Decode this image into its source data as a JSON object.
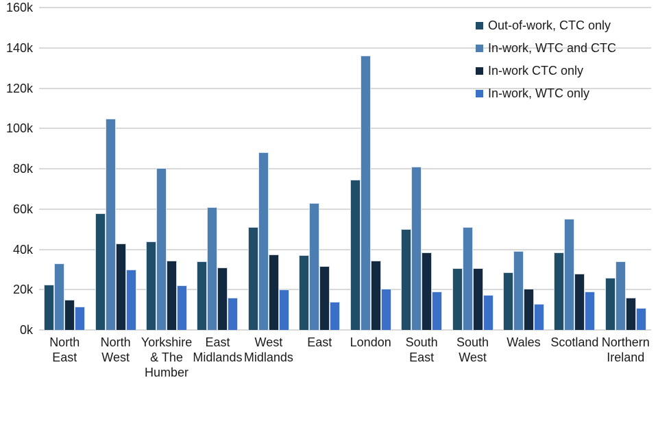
{
  "chart_data": {
    "type": "bar",
    "title": "",
    "xlabel": "",
    "ylabel": "",
    "categories": [
      "North East",
      "North West",
      "Yorkshire & The Humber",
      "East Midlands",
      "West Midlands",
      "East",
      "London",
      "South East",
      "South West",
      "Wales",
      "Scotland",
      "Northern Ireland"
    ],
    "series": [
      {
        "name": "Out-of-work, CTC only",
        "color": "#204d68",
        "values": [
          22500,
          58000,
          44000,
          34000,
          51000,
          37000,
          74500,
          50000,
          30500,
          28500,
          38500,
          26000
        ]
      },
      {
        "name": "In-work, WTC and CTC",
        "color": "#4d7eb2",
        "values": [
          33000,
          105000,
          80500,
          61000,
          88000,
          63000,
          136000,
          81000,
          51000,
          39000,
          55000,
          34000
        ]
      },
      {
        "name": "In-work CTC only",
        "color": "#132940",
        "values": [
          15000,
          43000,
          34500,
          31000,
          37500,
          31500,
          34500,
          38500,
          30500,
          20500,
          28000,
          16000
        ]
      },
      {
        "name": "In-work, WTC only",
        "color": "#3b70c9",
        "values": [
          11500,
          30000,
          22000,
          16000,
          20000,
          14000,
          20500,
          19000,
          17500,
          13000,
          19000,
          11000
        ]
      }
    ],
    "ylim": [
      0,
      160000
    ],
    "y_ticks": [
      "0k",
      "20k",
      "40k",
      "60k",
      "80k",
      "100k",
      "120k",
      "140k",
      "160k"
    ],
    "grid": "horizontal",
    "gridline_color": "#d9d9d9",
    "text_color": "#1a1a1a",
    "legend_position": "top-right-inside"
  }
}
